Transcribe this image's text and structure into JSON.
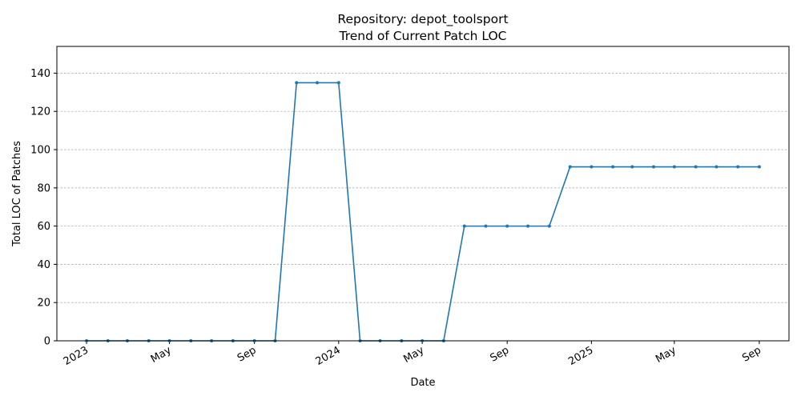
{
  "chart_data": {
    "type": "line",
    "title": "Repository: depot_toolsport",
    "subtitle": "Trend of Current Patch LOC",
    "xlabel": "Date",
    "ylabel": "Total LOC of Patches",
    "ylim": [
      0,
      154
    ],
    "yticks": [
      0,
      20,
      40,
      60,
      80,
      100,
      120,
      140
    ],
    "xlim": [
      "2022-11-19",
      "2025-10-14"
    ],
    "xticks": [
      {
        "date": "2023-01-01",
        "label": "2023"
      },
      {
        "date": "2023-05-01",
        "label": "May"
      },
      {
        "date": "2023-09-01",
        "label": "Sep"
      },
      {
        "date": "2024-01-01",
        "label": "2024"
      },
      {
        "date": "2024-05-01",
        "label": "May"
      },
      {
        "date": "2024-09-01",
        "label": "Sep"
      },
      {
        "date": "2025-01-01",
        "label": "2025"
      },
      {
        "date": "2025-05-01",
        "label": "May"
      },
      {
        "date": "2025-09-01",
        "label": "Sep"
      }
    ],
    "grid": "y-only, dashed",
    "color": "#1f77b4",
    "series": [
      {
        "points": [
          [
            "2023-01-01",
            0
          ],
          [
            "2023-02-01",
            0
          ],
          [
            "2023-03-01",
            0
          ],
          [
            "2023-04-01",
            0
          ],
          [
            "2023-05-01",
            0
          ],
          [
            "2023-06-01",
            0
          ],
          [
            "2023-07-01",
            0
          ],
          [
            "2023-08-01",
            0
          ],
          [
            "2023-09-01",
            0
          ],
          [
            "2023-10-01",
            0
          ],
          [
            "2023-11-01",
            135
          ],
          [
            "2023-12-01",
            135
          ],
          [
            "2024-01-01",
            135
          ],
          [
            "2024-02-01",
            0
          ],
          [
            "2024-03-01",
            0
          ],
          [
            "2024-04-01",
            0
          ],
          [
            "2024-05-01",
            0
          ],
          [
            "2024-06-01",
            0
          ],
          [
            "2024-07-01",
            60
          ],
          [
            "2024-08-01",
            60
          ],
          [
            "2024-09-01",
            60
          ],
          [
            "2024-10-01",
            60
          ],
          [
            "2024-11-01",
            60
          ],
          [
            "2024-12-01",
            91
          ],
          [
            "2025-01-01",
            91
          ],
          [
            "2025-02-01",
            91
          ],
          [
            "2025-03-01",
            91
          ],
          [
            "2025-04-01",
            91
          ],
          [
            "2025-05-01",
            91
          ],
          [
            "2025-06-01",
            91
          ],
          [
            "2025-07-01",
            91
          ],
          [
            "2025-08-01",
            91
          ],
          [
            "2025-09-01",
            91
          ]
        ]
      }
    ]
  }
}
